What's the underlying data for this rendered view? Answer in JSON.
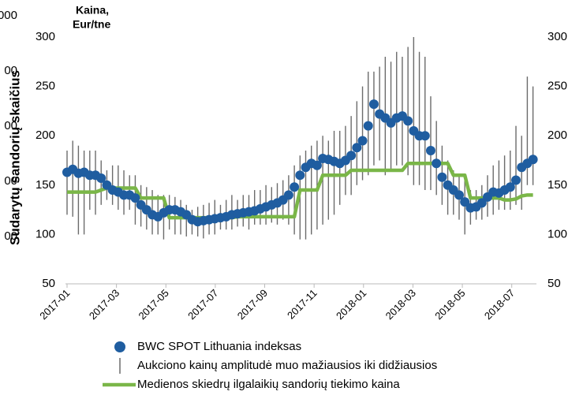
{
  "chart_data": {
    "type": "combo",
    "y_label_lines": [
      "Kaina,",
      "Eur/tne"
    ],
    "outer_axis_title": "Sudarytų sandorių skaičius",
    "outer_axis_labels": [
      "000",
      "00",
      "00",
      "00",
      "00"
    ],
    "x": [
      0,
      0.23,
      0.46,
      0.69,
      0.92,
      1.15,
      1.38,
      1.61,
      1.84,
      2.07,
      2.3,
      2.53,
      2.76,
      2.99,
      3.22,
      3.45,
      3.68,
      3.91,
      4.14,
      4.37,
      4.6,
      4.83,
      5.06,
      5.29,
      5.52,
      5.75,
      5.98,
      6.21,
      6.44,
      6.67,
      6.9,
      7.13,
      7.36,
      7.59,
      7.82,
      8.05,
      8.28,
      8.51,
      8.74,
      8.97,
      9.2,
      9.43,
      9.66,
      9.89,
      10.12,
      10.35,
      10.58,
      10.81,
      11.04,
      11.27,
      11.5,
      11.73,
      11.96,
      12.19,
      12.42,
      12.65,
      12.88,
      13.11,
      13.34,
      13.57,
      13.8,
      14.03,
      14.26,
      14.49,
      14.72,
      14.95,
      15.18,
      15.41,
      15.64,
      15.87,
      16.1,
      16.33,
      16.56,
      16.79,
      17.02,
      17.25,
      17.48,
      17.71,
      17.94,
      18.17,
      18.4,
      18.63,
      18.86
    ],
    "series": [
      {
        "name": "BWC SPOT Lithuania indeksas",
        "kind": "dots",
        "color": "#1f5da0",
        "values": [
          163,
          166,
          162,
          163,
          160,
          160,
          157,
          150,
          145,
          143,
          140,
          140,
          137,
          130,
          125,
          120,
          118,
          122,
          125,
          125,
          123,
          120,
          115,
          113,
          114,
          115,
          116,
          117,
          118,
          120,
          121,
          122,
          123,
          124,
          126,
          128,
          130,
          132,
          135,
          140,
          148,
          160,
          168,
          172,
          170,
          177,
          176,
          174,
          172,
          175,
          180,
          188,
          195,
          210,
          232,
          222,
          218,
          213,
          218,
          220,
          215,
          205,
          200,
          200,
          185,
          172,
          158,
          150,
          145,
          140,
          133,
          127,
          128,
          132,
          138,
          143,
          142,
          145,
          148,
          155,
          168,
          172,
          176
        ]
      },
      {
        "name": "Aukciono kainų amplitudė muo mažiausios iki didžiausios",
        "kind": "range",
        "color": "#6b6b6b",
        "low": [
          120,
          118,
          100,
          100,
          125,
          120,
          130,
          135,
          130,
          125,
          120,
          125,
          110,
          108,
          105,
          100,
          100,
          95,
          105,
          100,
          100,
          98,
          100,
          98,
          96,
          100,
          100,
          105,
          105,
          105,
          108,
          108,
          105,
          110,
          110,
          110,
          112,
          110,
          115,
          110,
          100,
          95,
          95,
          100,
          105,
          110,
          115,
          120,
          130,
          140,
          140,
          150,
          155,
          160,
          170,
          175,
          160,
          165,
          170,
          170,
          160,
          150,
          150,
          145,
          145,
          140,
          130,
          120,
          120,
          115,
          100,
          110,
          115,
          115,
          118,
          120,
          125,
          125,
          125,
          130,
          125,
          150,
          150
        ],
        "high": [
          185,
          195,
          190,
          185,
          185,
          185,
          175,
          165,
          170,
          170,
          165,
          160,
          160,
          150,
          148,
          145,
          140,
          140,
          140,
          138,
          135,
          130,
          125,
          128,
          130,
          132,
          135,
          130,
          135,
          140,
          135,
          140,
          140,
          145,
          145,
          150,
          148,
          152,
          155,
          160,
          170,
          180,
          185,
          190,
          195,
          200,
          195,
          205,
          205,
          210,
          220,
          235,
          250,
          265,
          265,
          270,
          280,
          275,
          285,
          280,
          290,
          300,
          285,
          280,
          240,
          215,
          190,
          175,
          165,
          160,
          155,
          145,
          145,
          150,
          160,
          170,
          175,
          180,
          185,
          210,
          200,
          260,
          250
        ]
      },
      {
        "name": "Medienos skiedrų ilgalaikių sandorių tiekimo kaina",
        "kind": "line",
        "color": "#7ab648",
        "values": [
          143,
          143,
          143,
          143,
          143,
          143,
          145,
          147,
          147,
          147,
          147,
          147,
          147,
          137,
          137,
          137,
          137,
          137,
          117,
          117,
          117,
          117,
          117,
          117,
          117,
          117,
          117,
          117,
          117,
          117,
          118,
          118,
          118,
          118,
          118,
          118,
          118,
          118,
          118,
          118,
          118,
          145,
          145,
          145,
          145,
          160,
          160,
          160,
          160,
          160,
          165,
          165,
          165,
          165,
          165,
          165,
          165,
          165,
          165,
          165,
          172,
          172,
          172,
          172,
          172,
          172,
          172,
          172,
          160,
          160,
          160,
          137,
          137,
          137,
          137,
          137,
          137,
          135,
          135,
          136,
          139,
          140,
          140
        ]
      }
    ],
    "xlim": [
      0,
      19
    ],
    "xticks": [
      {
        "value": 0,
        "label": "2017-01"
      },
      {
        "value": 2,
        "label": "2017-03"
      },
      {
        "value": 4,
        "label": "2017-05"
      },
      {
        "value": 6,
        "label": "2017-07"
      },
      {
        "value": 8,
        "label": "2017-09"
      },
      {
        "value": 10,
        "label": "2017-11"
      },
      {
        "value": 12,
        "label": "2018-01"
      },
      {
        "value": 14,
        "label": "2018-03"
      },
      {
        "value": 16,
        "label": "2018-05"
      },
      {
        "value": 18,
        "label": "2018-07"
      }
    ],
    "ylim": [
      50,
      300
    ],
    "yticks": [
      50,
      100,
      150,
      200,
      250,
      300
    ],
    "y2lim": [
      50,
      300
    ],
    "y2ticks": [
      50,
      100,
      150,
      200,
      250,
      300
    ]
  }
}
